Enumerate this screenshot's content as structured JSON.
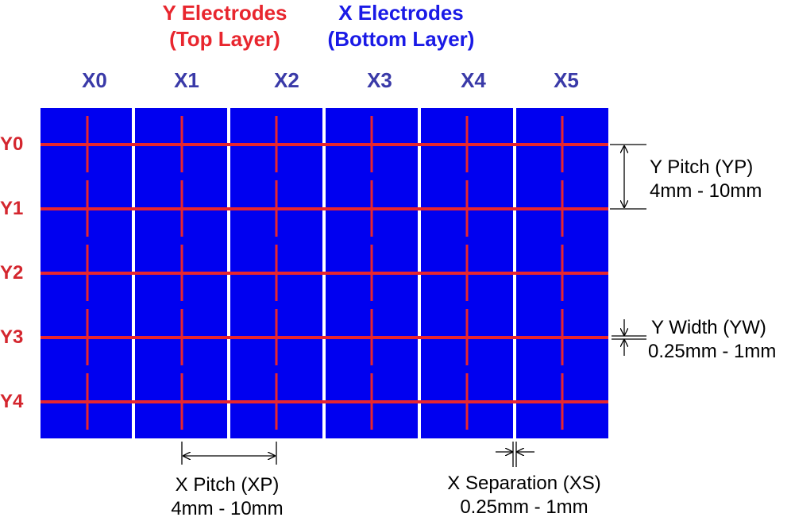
{
  "titles": {
    "y_line1": "Y Electrodes",
    "y_line2": "(Top Layer)",
    "x_line1": "X Electrodes",
    "x_line2": "(Bottom Layer)"
  },
  "x_electrodes": [
    "X0",
    "X1",
    "X2",
    "X3",
    "X4",
    "X5"
  ],
  "y_electrodes": [
    "Y0",
    "Y1",
    "Y2",
    "Y3",
    "Y4"
  ],
  "annotations": {
    "y_pitch": {
      "label": "Y Pitch (YP)",
      "range": "4mm - 10mm"
    },
    "y_width": {
      "label": "Y Width (YW)",
      "range": "0.25mm - 1mm"
    },
    "x_pitch": {
      "label": "X Pitch (XP)",
      "range": "4mm - 10mm"
    },
    "x_separation": {
      "label": "X Separation (XS)",
      "range": "0.25mm - 1mm"
    }
  },
  "colors": {
    "x_electrode": "#0000f0",
    "y_electrode": "#e8262e",
    "x_label": "#3a3aa8",
    "y_label": "#d4262e"
  }
}
